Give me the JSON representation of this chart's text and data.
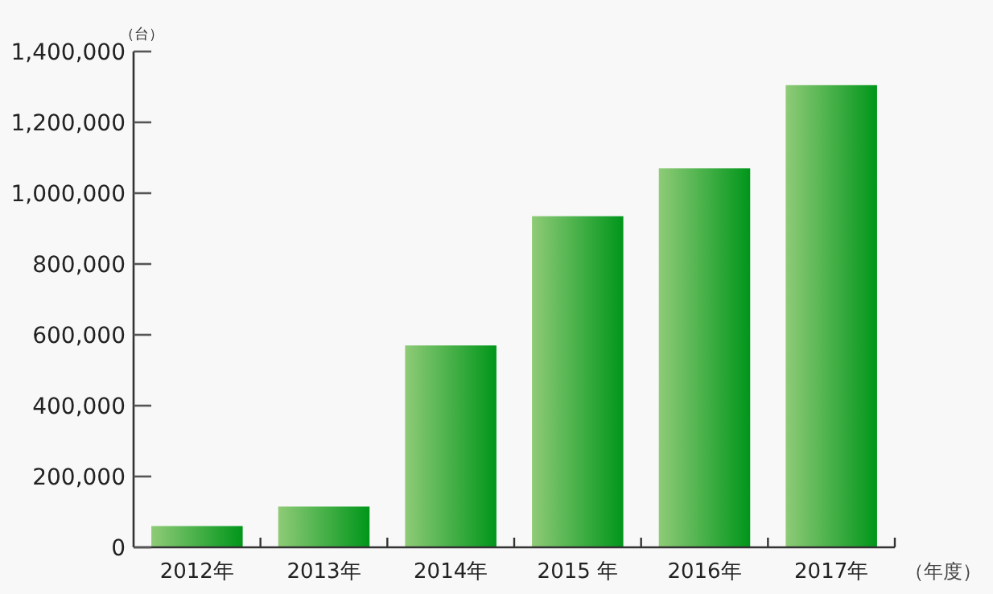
{
  "chart_data": {
    "type": "bar",
    "ylabel": "（台）",
    "xlabel": "（年度）",
    "categories": [
      "2012年",
      "2013年",
      "2014年",
      "2015 年",
      "2016年",
      "2017年"
    ],
    "series": [
      {
        "color": "#00961a",
        "values": [
          60000,
          115000,
          570000,
          935000,
          1070000,
          1305000
        ]
      }
    ],
    "ylim": [
      0,
      1400000
    ],
    "yticks": [
      0,
      {
        "value": 200000,
        "label": "200,000"
      },
      {
        "value": 400000,
        "label": "400,000"
      },
      {
        "value": 600000,
        "label": "600,000"
      },
      {
        "value": 800000,
        "label": "800,000"
      },
      {
        "value": 1000000,
        "label": "1,000,000"
      },
      {
        "value": 1200000,
        "label": "1,200,000"
      },
      {
        "value": 1400000,
        "label": "1,400,000"
      }
    ]
  }
}
